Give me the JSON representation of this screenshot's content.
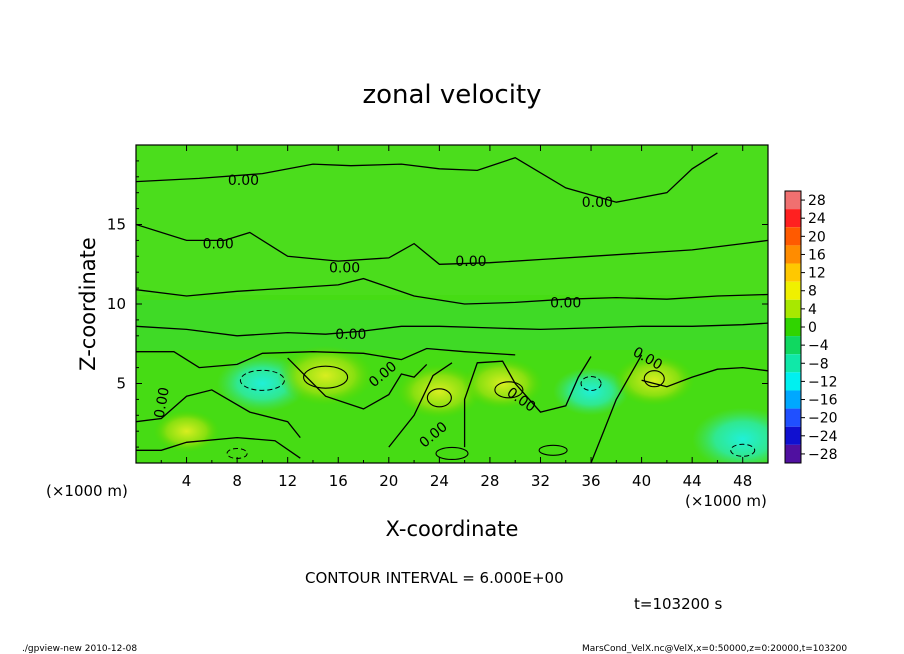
{
  "chart_data": {
    "type": "heatmap",
    "title": "zonal velocity",
    "xlabel": "X-coordinate",
    "ylabel": "Z-coordinate",
    "x_unit": "(×1000 m)",
    "y_unit": "(×1000 m)",
    "xlim": [
      0,
      50
    ],
    "ylim": [
      0,
      20
    ],
    "x_ticks": [
      4,
      8,
      12,
      16,
      20,
      24,
      28,
      32,
      36,
      40,
      44,
      48
    ],
    "y_ticks": [
      5,
      10,
      15
    ],
    "colorbar_levels": [
      28,
      24,
      20,
      16,
      12,
      8,
      4,
      0,
      -4,
      -8,
      -12,
      -16,
      -20,
      -24,
      -28
    ],
    "colorbar_colors": [
      "#f07070",
      "#ff2020",
      "#ff5a00",
      "#ff8c00",
      "#ffc800",
      "#f0f000",
      "#a8e800",
      "#30d400",
      "#10d860",
      "#10e8a8",
      "#00f0f0",
      "#00a8ff",
      "#2050ff",
      "#1010d0",
      "#5010a0"
    ],
    "contour_label": "0.00",
    "contour_interval": "CONTOUR INTERVAL = 6.000E+00",
    "time": "t=103200 s",
    "field_samples": [
      {
        "x": 4,
        "z": 2,
        "value": 2
      },
      {
        "x": 10,
        "z": 5,
        "value": -7
      },
      {
        "x": 15,
        "z": 5.5,
        "value": 8
      },
      {
        "x": 24,
        "z": 4.5,
        "value": 6
      },
      {
        "x": 29,
        "z": 5,
        "value": 5
      },
      {
        "x": 36,
        "z": 4.5,
        "value": -4
      },
      {
        "x": 41,
        "z": 5.2,
        "value": 5
      },
      {
        "x": 48,
        "z": 1.5,
        "value": -9
      },
      {
        "x": 20,
        "z": 11,
        "value": 0
      },
      {
        "x": 30,
        "z": 16,
        "value": 1
      }
    ]
  },
  "footer": {
    "left": "./gpview-new  2010-12-08",
    "right": "MarsCond_VelX.nc@VelX,x=0:50000,z=0:20000,t=103200"
  }
}
